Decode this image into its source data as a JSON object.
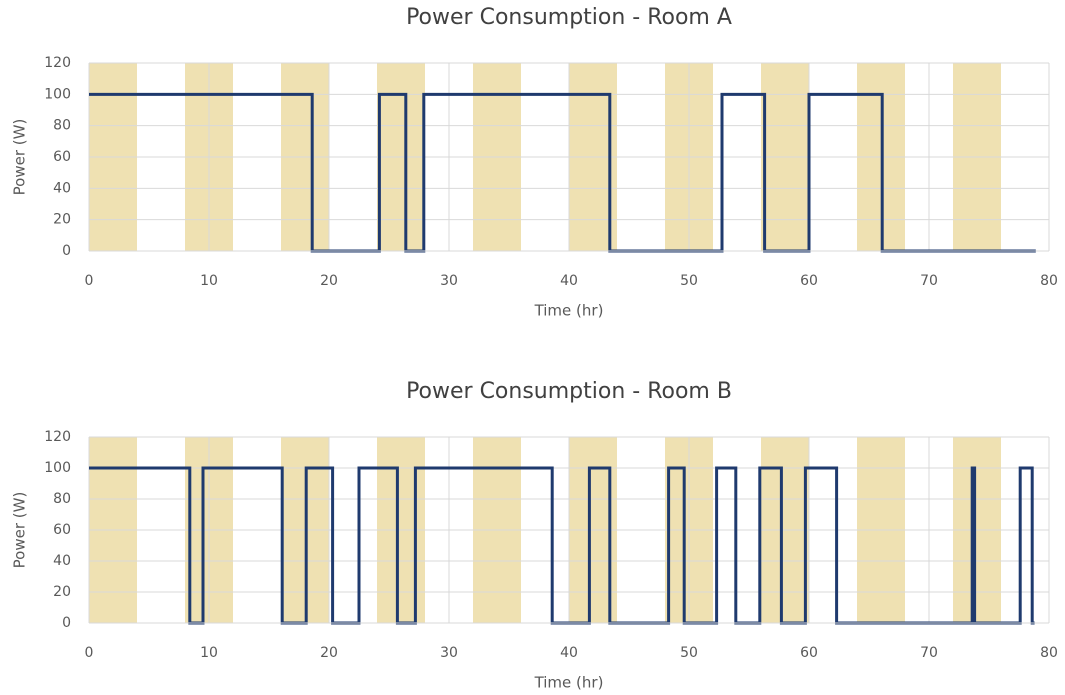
{
  "chart_data": [
    {
      "type": "line",
      "title": "Power Consumption - Room A",
      "xlabel": "Time (hr)",
      "ylabel": "Power (W)",
      "xlim": [
        0,
        80
      ],
      "xticks": [
        0,
        10,
        20,
        30,
        40,
        50,
        60,
        70,
        80
      ],
      "ylim": [
        0,
        120
      ],
      "yticks": [
        0,
        20,
        40,
        60,
        80,
        100,
        120
      ],
      "grid": true,
      "shaded_intervals": [
        [
          0,
          4
        ],
        [
          8,
          12
        ],
        [
          16,
          20
        ],
        [
          24,
          28
        ],
        [
          32,
          36
        ],
        [
          40,
          44
        ],
        [
          48,
          52
        ],
        [
          56,
          60
        ],
        [
          64,
          68
        ],
        [
          72,
          76
        ]
      ],
      "shade_color": "#efe1b2",
      "series": [
        {
          "color": "#1f3a6e",
          "x": [
            0,
            18.6,
            18.6,
            24.2,
            24.2,
            26.4,
            26.4,
            27.9,
            27.9,
            43.4,
            43.4,
            52.75,
            52.75,
            56.3,
            56.3,
            60,
            60,
            66.1,
            66.1,
            78.9
          ],
          "values": [
            100,
            100,
            0,
            0,
            100,
            100,
            0,
            0,
            100,
            100,
            0,
            0,
            100,
            100,
            0,
            0,
            100,
            100,
            0,
            0
          ]
        }
      ]
    },
    {
      "type": "line",
      "title": "Power Consumption - Room B",
      "xlabel": "Time (hr)",
      "ylabel": "Power (W)",
      "xlim": [
        0,
        80
      ],
      "xticks": [
        0,
        10,
        20,
        30,
        40,
        50,
        60,
        70,
        80
      ],
      "ylim": [
        0,
        120
      ],
      "yticks": [
        0,
        20,
        40,
        60,
        80,
        100,
        120
      ],
      "grid": true,
      "shaded_intervals": [
        [
          0,
          4
        ],
        [
          8,
          12
        ],
        [
          16,
          20
        ],
        [
          24,
          28
        ],
        [
          32,
          36
        ],
        [
          40,
          44
        ],
        [
          48,
          52
        ],
        [
          56,
          60
        ],
        [
          64,
          68
        ],
        [
          72,
          76
        ]
      ],
      "shade_color": "#efe1b2",
      "series": [
        {
          "color": "#1f3a6e",
          "x": [
            0,
            8.4,
            8.4,
            9.5,
            9.5,
            16.1,
            16.1,
            18.1,
            18.1,
            20.3,
            20.3,
            22.5,
            22.5,
            25.7,
            25.7,
            27.2,
            27.2,
            38.6,
            38.6,
            41.7,
            41.7,
            43.4,
            43.4,
            48.3,
            48.3,
            49.6,
            49.6,
            52.3,
            52.3,
            53.9,
            53.9,
            55.9,
            55.9,
            57.7,
            57.7,
            59.7,
            59.7,
            62.3,
            62.3,
            73.6,
            73.6,
            73.8,
            73.8,
            77.6,
            77.6,
            78.6,
            78.6,
            78.8
          ],
          "values": [
            100,
            100,
            0,
            0,
            100,
            100,
            0,
            0,
            100,
            100,
            0,
            0,
            100,
            100,
            0,
            0,
            100,
            100,
            0,
            0,
            100,
            100,
            0,
            0,
            100,
            100,
            0,
            0,
            100,
            100,
            0,
            0,
            100,
            100,
            0,
            0,
            100,
            100,
            0,
            0,
            100,
            100,
            0,
            0,
            100,
            100,
            0,
            0
          ]
        }
      ]
    }
  ]
}
